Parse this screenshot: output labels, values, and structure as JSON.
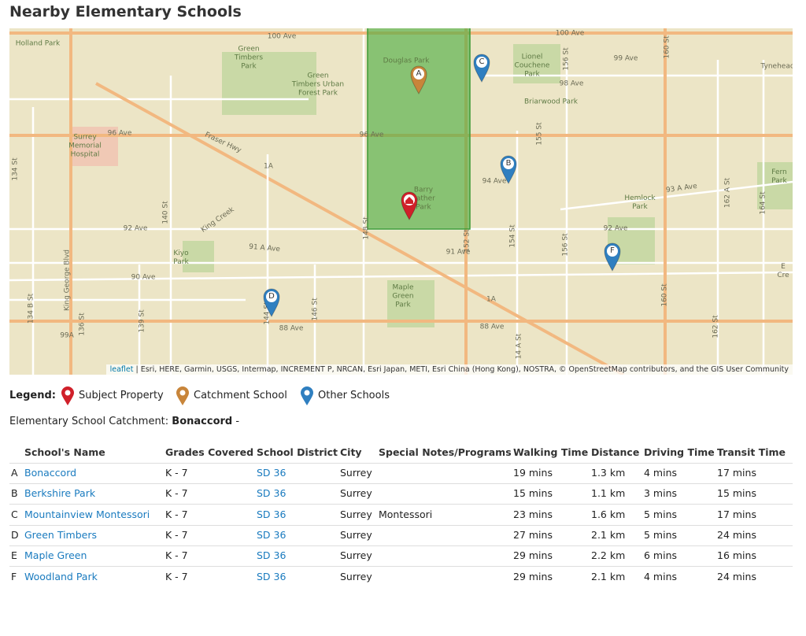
{
  "header": {
    "title": "Nearby Elementary Schools"
  },
  "map": {
    "labels": [
      "100 Ave",
      "100 Ave",
      "Holland Park",
      "Green\nTimbers\nPark",
      "Green\nTimbers Urban\nForest Park",
      "Douglas Park",
      "Lionel\nCouchene\nPark",
      "99 Ave",
      "98 Ave",
      "Briarwood Park",
      "156 St",
      "160 St",
      "Tynehead",
      "96 Ave",
      "96 Ave",
      "Fraser Hwy",
      "Surrey\nMemorial\nHospital",
      "155 St",
      "94 Ave",
      "93 A Ave",
      "Hemlock\nPark",
      "Fern\nPark",
      "162 A St",
      "164 St",
      "134 St",
      "1A",
      "King Creek",
      "140 St",
      "92 Ave",
      "92 Ave",
      "Barry\nSather\nPark",
      "148 St",
      "152 St",
      "154 St",
      "156 St",
      "91 A Ave",
      "91 Ave",
      "Kiyo\nPark",
      "90 Ave",
      "King George Blvd",
      "Maple\nGreen\nPark",
      "1A",
      "88 Ave",
      "88 Ave",
      "144 St",
      "146 St",
      "139 St",
      "134 B St",
      "136 St",
      "99A",
      "160 St",
      "162 St",
      "E Cre",
      "14 A St"
    ],
    "pins": [
      "A",
      "B",
      "C",
      "D",
      "F"
    ],
    "attribution": {
      "link": "leaflet",
      "text": "| Esri, HERE, Garmin, USGS, Intermap, INCREMENT P, NRCAN, Esri Japan, METI, Esri China (Hong Kong), NOSTRA, © OpenStreetMap contributors, and the GIS User Community"
    }
  },
  "legend": {
    "title": "Legend:",
    "items": [
      "Subject Property",
      "Catchment School",
      "Other Schools"
    ]
  },
  "catchment": {
    "label": "Elementary School Catchment:",
    "school": "Bonaccord",
    "suffix": "-"
  },
  "table": {
    "columns": [
      "School's Name",
      "Grades Covered",
      "School District",
      "City",
      "Special Notes/Programs",
      "Walking Time",
      "Distance",
      "Driving Time",
      "Transit Time"
    ],
    "rows": [
      {
        "letter": "A",
        "name": "Bonaccord",
        "grades": "K - 7",
        "district": "SD 36",
        "city": "Surrey",
        "walking": "19 mins",
        "distance": "1.3 km",
        "driving": "4 mins",
        "transit": "17 mins"
      },
      {
        "letter": "B",
        "name": "Berkshire Park",
        "grades": "K - 7",
        "district": "SD 36",
        "city": "Surrey",
        "walking": "15 mins",
        "distance": "1.1 km",
        "driving": "3 mins",
        "transit": "15 mins"
      },
      {
        "letter": "C",
        "name": "Mountainview Montessori",
        "grades": "K - 7",
        "district": "SD 36",
        "city": "Surrey",
        "notes": "Montessori",
        "walking": "23 mins",
        "distance": "1.6 km",
        "driving": "5 mins",
        "transit": "17 mins"
      },
      {
        "letter": "D",
        "name": "Green Timbers",
        "grades": "K - 7",
        "district": "SD 36",
        "city": "Surrey",
        "walking": "27 mins",
        "distance": "2.1 km",
        "driving": "5 mins",
        "transit": "24 mins"
      },
      {
        "letter": "E",
        "name": "Maple Green",
        "grades": "K - 7",
        "district": "SD 36",
        "city": "Surrey",
        "walking": "29 mins",
        "distance": "2.2 km",
        "driving": "6 mins",
        "transit": "16 mins"
      },
      {
        "letter": "F",
        "name": "Woodland Park",
        "grades": "K - 7",
        "district": "SD 36",
        "city": "Surrey",
        "walking": "29 mins",
        "distance": "2.1 km",
        "driving": "4 mins",
        "transit": "24 mins"
      }
    ]
  }
}
